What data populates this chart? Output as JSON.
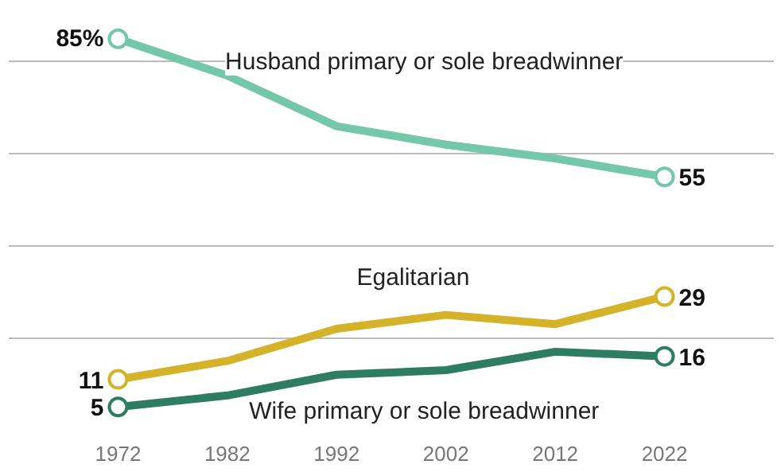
{
  "chart_data": {
    "type": "line",
    "x": [
      1972,
      1982,
      1992,
      2002,
      2012,
      2022
    ],
    "series": [
      {
        "name": "Husband primary or sole breadwinner",
        "color": "#74c7a8",
        "values": [
          85,
          77,
          66,
          62,
          59,
          55
        ],
        "value_labels": [
          "85%",
          null,
          null,
          null,
          null,
          "55"
        ]
      },
      {
        "name": "Egalitarian",
        "color": "#d4b32a",
        "values": [
          11,
          15,
          22,
          25,
          23,
          29
        ],
        "value_labels": [
          "11",
          null,
          null,
          null,
          null,
          "29"
        ]
      },
      {
        "name": "Wife primary or sole breadwinner",
        "color": "#2e7d63",
        "values": [
          5,
          7.5,
          12,
          13,
          17,
          16
        ],
        "value_labels": [
          "5",
          null,
          null,
          null,
          null,
          "16"
        ]
      }
    ],
    "xlim": [
      1962,
      2032
    ],
    "xticks": [
      1972,
      1982,
      1992,
      2002,
      2012,
      2022
    ],
    "grid": "y",
    "tick_labels": "x",
    "line_style": "solid"
  }
}
